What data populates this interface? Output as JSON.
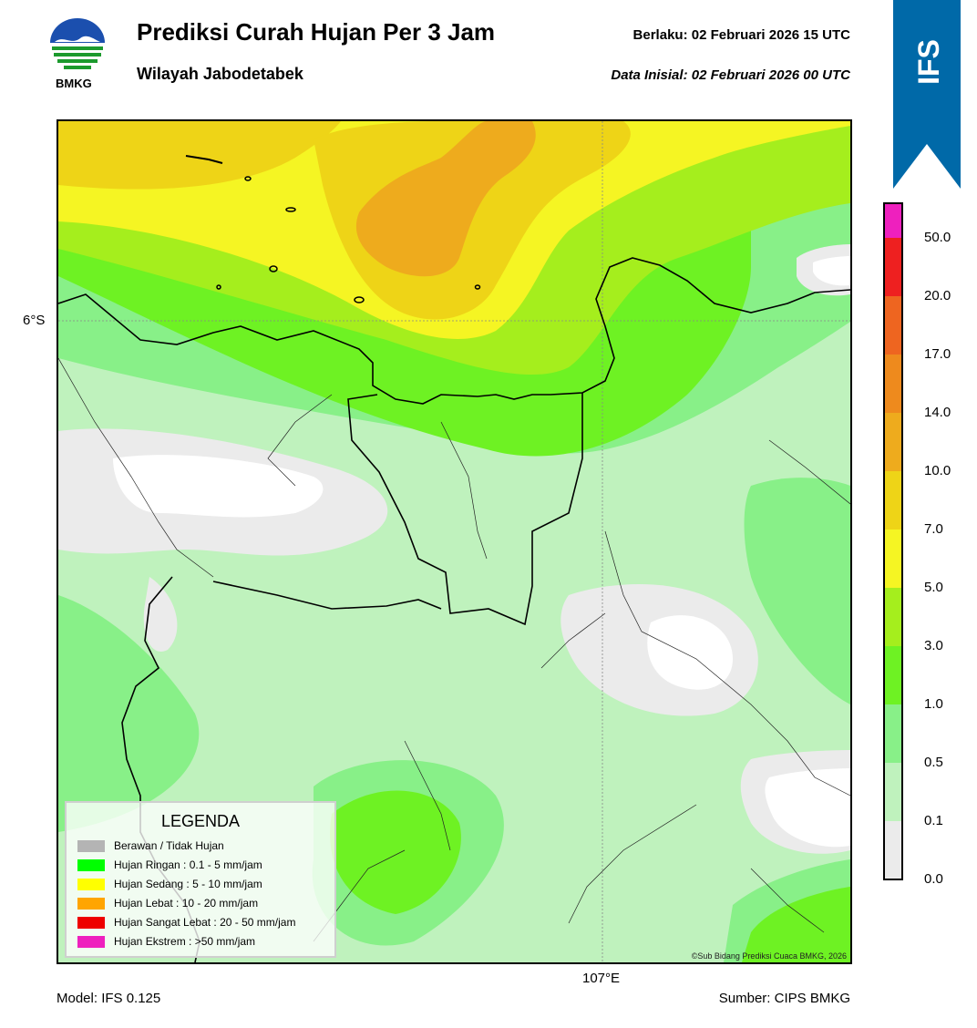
{
  "header": {
    "title": "Prediksi Curah Hujan Per 3 Jam",
    "subtitle": "Wilayah Jabodetabek",
    "valid_time": "Berlaku:  02 Februari 2026 15 UTC",
    "initial_time": "Data Inisial:  02 Februari 2026 00 UTC"
  },
  "logo": {
    "icon": "bmkg-logo-icon",
    "text": "BMKG"
  },
  "badge": {
    "text": "IFS",
    "color": "#0069a8"
  },
  "map": {
    "lat_label": "6°S",
    "lon_label": "107°E",
    "credit": "©Sub Bidang Prediksi Cuaca BMKG, 2026"
  },
  "colorbar": {
    "ticks": [
      "0.0",
      "0.1",
      "0.5",
      "1.0",
      "3.0",
      "5.0",
      "7.0",
      "10.0",
      "14.0",
      "17.0",
      "20.0",
      "50.0"
    ],
    "colors": [
      "#ebebeb",
      "#bff2bd",
      "#88f088",
      "#6ef223",
      "#a5ee1d",
      "#f5f523",
      "#eed417",
      "#eeab1d",
      "#ee8a1d",
      "#ee6520",
      "#ee2020",
      "#ee20be"
    ]
  },
  "legend": {
    "title": "LEGENDA",
    "items": [
      {
        "label": "Berawan / Tidak Hujan",
        "color": "#b4b4b4"
      },
      {
        "label": "Hujan Ringan : 0.1 - 5 mm/jam",
        "color": "#00ff00"
      },
      {
        "label": "Hujan Sedang : 5 - 10 mm/jam",
        "color": "#ffff00"
      },
      {
        "label": "Hujan Lebat : 10 - 20 mm/jam",
        "color": "#ffa500"
      },
      {
        "label": "Hujan Sangat Lebat : 20 - 50 mm/jam",
        "color": "#ee0000"
      },
      {
        "label": "Hujan Ekstrem : >50 mm/jam",
        "color": "#ee20be"
      }
    ]
  },
  "footer": {
    "model": "Model: IFS 0.125",
    "source": "Sumber: CIPS BMKG"
  }
}
